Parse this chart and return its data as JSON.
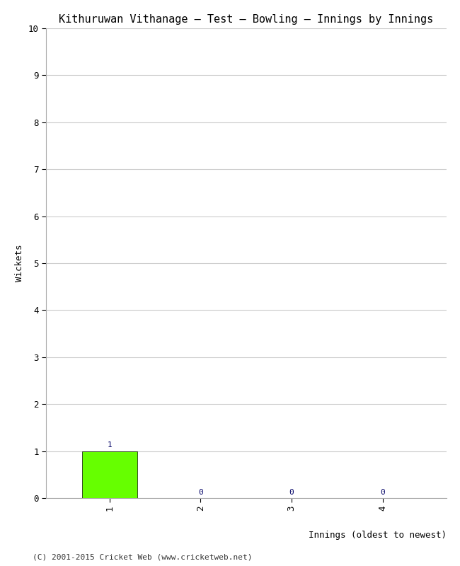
{
  "title": "Kithuruwan Vithanage – Test – Bowling – Innings by Innings",
  "xlabel": "Innings (oldest to newest)",
  "ylabel": "Wickets",
  "innings": [
    1,
    2,
    3,
    4
  ],
  "wickets": [
    1,
    0,
    0,
    0
  ],
  "bar_color": "#66ff00",
  "bar_edge_color": "#000000",
  "annotation_color": "#000066",
  "ylim": [
    0,
    10
  ],
  "yticks": [
    0,
    1,
    2,
    3,
    4,
    5,
    6,
    7,
    8,
    9,
    10
  ],
  "xticks": [
    1,
    2,
    3,
    4
  ],
  "background_color": "#ffffff",
  "grid_color": "#cccccc",
  "title_fontsize": 11,
  "label_fontsize": 9,
  "tick_fontsize": 9,
  "annotation_fontsize": 8,
  "footer": "(C) 2001-2015 Cricket Web (www.cricketweb.net)",
  "footer_fontsize": 8
}
